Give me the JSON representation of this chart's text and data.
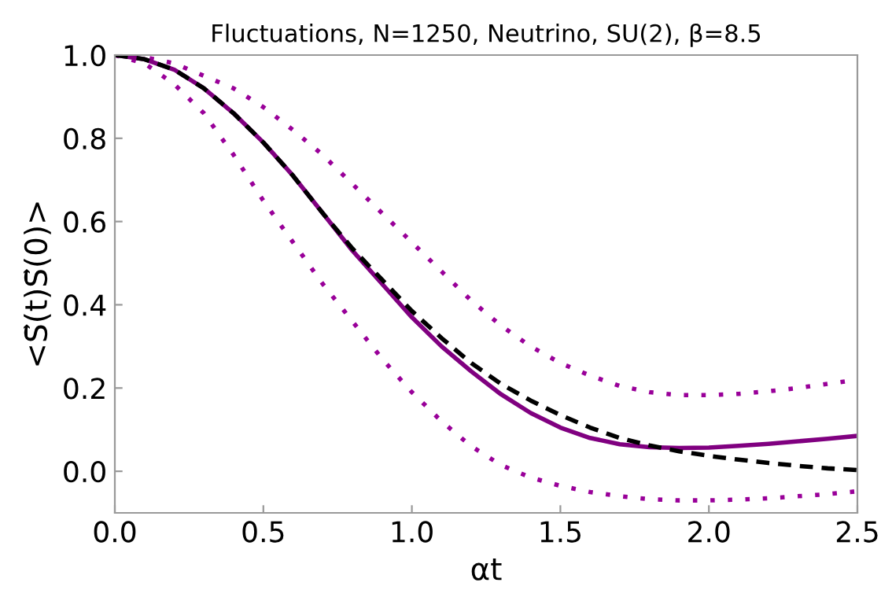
{
  "chart_data": {
    "type": "line",
    "title": "Fluctuations, N=1250, Neutrino, SU(2), β=8.5",
    "xlabel": "αt",
    "ylabel": "<S⃗(t)S⃗(0)>",
    "x": [
      0,
      0.1,
      0.2,
      0.3,
      0.4,
      0.5,
      0.6,
      0.7,
      0.8,
      0.9,
      1.0,
      1.1,
      1.2,
      1.3,
      1.4,
      1.5,
      1.6,
      1.7,
      1.8,
      1.9,
      2.0,
      2.1,
      2.2,
      2.3,
      2.4,
      2.5
    ],
    "series": [
      {
        "color": "#990099",
        "line_style": "dotted",
        "values": [
          1.0,
          0.995,
          0.98,
          0.95,
          0.92,
          0.875,
          0.82,
          0.76,
          0.69,
          0.62,
          0.55,
          0.48,
          0.41,
          0.35,
          0.3,
          0.26,
          0.23,
          0.205,
          0.19,
          0.183,
          0.183,
          0.186,
          0.192,
          0.2,
          0.21,
          0.22
        ]
      },
      {
        "color": "#990099",
        "line_style": "dotted",
        "values": [
          1.0,
          0.98,
          0.93,
          0.86,
          0.76,
          0.65,
          0.55,
          0.45,
          0.36,
          0.27,
          0.19,
          0.12,
          0.06,
          0.015,
          -0.015,
          -0.035,
          -0.05,
          -0.06,
          -0.067,
          -0.07,
          -0.07,
          -0.068,
          -0.065,
          -0.06,
          -0.055,
          -0.048
        ]
      },
      {
        "color": "#800080",
        "line_style": "solid",
        "values": [
          1.0,
          0.99,
          0.965,
          0.92,
          0.86,
          0.79,
          0.71,
          0.62,
          0.53,
          0.45,
          0.37,
          0.3,
          0.24,
          0.185,
          0.14,
          0.105,
          0.08,
          0.065,
          0.058,
          0.056,
          0.057,
          0.061,
          0.066,
          0.072,
          0.078,
          0.085
        ]
      },
      {
        "color": "#000000",
        "line_style": "dashed",
        "values": [
          1.0,
          0.99,
          0.965,
          0.92,
          0.86,
          0.79,
          0.71,
          0.62,
          0.535,
          0.46,
          0.385,
          0.32,
          0.26,
          0.21,
          0.17,
          0.135,
          0.105,
          0.08,
          0.062,
          0.048,
          0.037,
          0.028,
          0.02,
          0.013,
          0.007,
          0.003
        ]
      }
    ],
    "xlim": [
      0,
      2.5
    ],
    "ylim": [
      -0.1,
      1.0
    ],
    "xticks": [
      {
        "value": 0,
        "label": "0.0"
      },
      0.5,
      {
        "value": 1,
        "label": "1.0"
      },
      1.5,
      {
        "value": 2,
        "label": "2.0"
      },
      2.5
    ],
    "yticks": [
      {
        "value": 0,
        "label": "0.0"
      },
      0.2,
      0.4,
      0.6,
      0.8,
      {
        "value": 1,
        "label": "1.0"
      }
    ],
    "grid": false,
    "legend": false
  }
}
